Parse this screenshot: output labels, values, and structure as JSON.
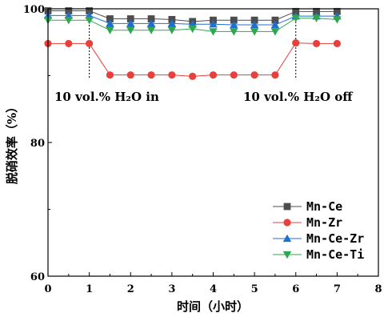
{
  "chart_data": {
    "type": "line",
    "xlabel": "时间（小时）",
    "ylabel": "脱硝效率（%）",
    "xlim": [
      0,
      8
    ],
    "ylim": [
      60,
      100
    ],
    "xticks": [
      0,
      1,
      2,
      3,
      4,
      5,
      6,
      7,
      8
    ],
    "yticks": [
      60,
      80,
      100
    ],
    "grid": false,
    "legend_position": "bottom-right",
    "x": [
      0,
      0.5,
      1,
      1.5,
      2,
      2.5,
      3,
      3.5,
      4,
      4.5,
      5,
      5.5,
      6,
      6.5,
      7
    ],
    "series": [
      {
        "name": "Mn-Ce",
        "color": "#4d4d4d",
        "marker": "square",
        "values": [
          99.7,
          99.7,
          99.7,
          98.5,
          98.5,
          98.5,
          98.4,
          98.1,
          98.3,
          98.3,
          98.3,
          98.3,
          99.6,
          99.6,
          99.6
        ]
      },
      {
        "name": "Mn-Zr",
        "color": "#e8403a",
        "marker": "circle",
        "values": [
          94.8,
          94.8,
          94.8,
          90.1,
          90.1,
          90.1,
          90.1,
          89.9,
          90.1,
          90.1,
          90.1,
          90.1,
          94.9,
          94.8,
          94.8
        ]
      },
      {
        "name": "Mn-Ce-Zr",
        "color": "#1f6fd1",
        "marker": "triangle-up",
        "values": [
          99.0,
          99.0,
          99.0,
          97.8,
          97.8,
          97.8,
          97.8,
          97.7,
          97.7,
          97.6,
          97.6,
          97.6,
          98.9,
          98.9,
          98.9
        ]
      },
      {
        "name": "Mn-Ce-Ti",
        "color": "#2ea84f",
        "marker": "triangle-down",
        "values": [
          98.3,
          98.3,
          98.3,
          96.8,
          96.8,
          96.8,
          96.8,
          97.0,
          96.6,
          96.6,
          96.6,
          96.6,
          98.6,
          98.6,
          98.4
        ]
      }
    ],
    "annotations": [
      {
        "x": 1,
        "text": "10 vol.% H₂O in"
      },
      {
        "x": 6,
        "text": "10 vol.% H₂O off"
      }
    ]
  }
}
